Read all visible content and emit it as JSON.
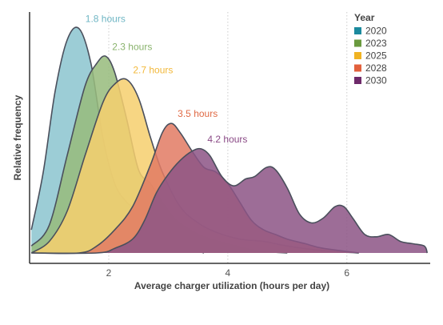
{
  "chart_data": {
    "type": "area",
    "xlabel": "Average charger utilization (hours per day)",
    "ylabel": "Relative frequency",
    "xlim": [
      0.67,
      7.4
    ],
    "ylim": [
      0,
      1.0
    ],
    "x_ticks": [
      2,
      4,
      6
    ],
    "grid": "vertical dotted at x ticks",
    "legend": {
      "title": "Year",
      "placement": "top-right"
    },
    "series": [
      {
        "name": "2020",
        "color": "#8cc5cf",
        "swatch": "#1b8a9e",
        "peak_label": "1.8 hours",
        "label_color": "#6fb6c4",
        "points": [
          [
            0.7,
            0.1
          ],
          [
            0.9,
            0.35
          ],
          [
            1.1,
            0.7
          ],
          [
            1.3,
            0.92
          ],
          [
            1.5,
            0.97
          ],
          [
            1.7,
            0.82
          ],
          [
            1.9,
            0.5
          ],
          [
            2.1,
            0.3
          ],
          [
            2.3,
            0.22
          ],
          [
            2.5,
            0.18
          ],
          [
            2.7,
            0.12
          ],
          [
            2.9,
            0.07
          ],
          [
            3.1,
            0.04
          ],
          [
            3.3,
            0.02
          ],
          [
            3.6,
            0.0
          ]
        ]
      },
      {
        "name": "2023",
        "color": "#97bb7d",
        "swatch": "#6a9a3e",
        "peak_label": "2.3 hours",
        "label_color": "#8ab36d",
        "points": [
          [
            0.7,
            0.03
          ],
          [
            1.0,
            0.12
          ],
          [
            1.3,
            0.42
          ],
          [
            1.6,
            0.72
          ],
          [
            1.8,
            0.82
          ],
          [
            1.95,
            0.85
          ],
          [
            2.1,
            0.78
          ],
          [
            2.3,
            0.58
          ],
          [
            2.5,
            0.36
          ],
          [
            2.7,
            0.3
          ],
          [
            2.9,
            0.22
          ],
          [
            3.1,
            0.15
          ],
          [
            3.3,
            0.11
          ],
          [
            3.6,
            0.07
          ],
          [
            4.0,
            0.04
          ],
          [
            4.5,
            0.01
          ],
          [
            5.0,
            0.0
          ]
        ]
      },
      {
        "name": "2025",
        "color": "#f6cf6f",
        "swatch": "#f0b323",
        "peak_label": "2.7 hours",
        "label_color": "#f2b83a",
        "points": [
          [
            0.7,
            0.0
          ],
          [
            1.0,
            0.05
          ],
          [
            1.3,
            0.18
          ],
          [
            1.6,
            0.42
          ],
          [
            1.9,
            0.65
          ],
          [
            2.1,
            0.73
          ],
          [
            2.3,
            0.75
          ],
          [
            2.5,
            0.67
          ],
          [
            2.7,
            0.5
          ],
          [
            2.9,
            0.35
          ],
          [
            3.2,
            0.2
          ],
          [
            3.5,
            0.13
          ],
          [
            3.8,
            0.09
          ],
          [
            4.2,
            0.06
          ],
          [
            4.6,
            0.05
          ],
          [
            5.0,
            0.03
          ],
          [
            5.6,
            0.01
          ],
          [
            6.2,
            0.0
          ]
        ]
      },
      {
        "name": "2028",
        "color": "#e27c64",
        "swatch": "#e2603c",
        "peak_label": "3.5 hours",
        "label_color": "#e06a45",
        "points": [
          [
            0.7,
            0.0
          ],
          [
            1.5,
            0.0
          ],
          [
            1.8,
            0.03
          ],
          [
            2.1,
            0.1
          ],
          [
            2.4,
            0.2
          ],
          [
            2.7,
            0.38
          ],
          [
            2.9,
            0.52
          ],
          [
            3.05,
            0.56
          ],
          [
            3.2,
            0.52
          ],
          [
            3.4,
            0.44
          ],
          [
            3.6,
            0.37
          ],
          [
            3.8,
            0.35
          ],
          [
            4.0,
            0.3
          ],
          [
            4.2,
            0.22
          ],
          [
            4.4,
            0.14
          ],
          [
            4.6,
            0.1
          ],
          [
            4.8,
            0.08
          ],
          [
            5.0,
            0.06
          ],
          [
            5.3,
            0.04
          ],
          [
            5.6,
            0.02
          ],
          [
            6.2,
            0.0
          ]
        ]
      },
      {
        "name": "2030",
        "color": "#8d5586",
        "swatch": "#6e2a6a",
        "peak_label": "4.2 hours",
        "label_color": "#8a4a86",
        "points": [
          [
            0.7,
            0.0
          ],
          [
            1.8,
            0.0
          ],
          [
            2.1,
            0.02
          ],
          [
            2.4,
            0.06
          ],
          [
            2.6,
            0.14
          ],
          [
            2.8,
            0.26
          ],
          [
            3.0,
            0.34
          ],
          [
            3.2,
            0.4
          ],
          [
            3.4,
            0.44
          ],
          [
            3.55,
            0.45
          ],
          [
            3.7,
            0.42
          ],
          [
            3.9,
            0.33
          ],
          [
            4.1,
            0.29
          ],
          [
            4.3,
            0.32
          ],
          [
            4.45,
            0.33
          ],
          [
            4.65,
            0.37
          ],
          [
            4.8,
            0.36
          ],
          [
            5.0,
            0.28
          ],
          [
            5.2,
            0.17
          ],
          [
            5.4,
            0.13
          ],
          [
            5.6,
            0.15
          ],
          [
            5.8,
            0.2
          ],
          [
            5.95,
            0.2
          ],
          [
            6.1,
            0.15
          ],
          [
            6.3,
            0.08
          ],
          [
            6.5,
            0.07
          ],
          [
            6.7,
            0.08
          ],
          [
            6.9,
            0.05
          ],
          [
            7.1,
            0.04
          ],
          [
            7.3,
            0.03
          ],
          [
            7.35,
            0.0
          ]
        ]
      }
    ]
  }
}
